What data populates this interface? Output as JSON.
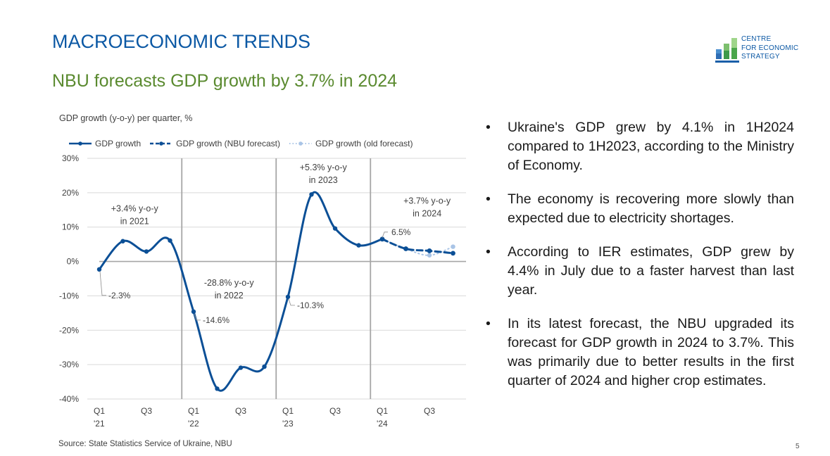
{
  "header": {
    "title": "MACROECONOMIC TRENDS",
    "subtitle": "NBU forecasts GDP growth by 3.7% in 2024"
  },
  "logo": {
    "icon": "bar-chart-logo-icon",
    "lines": [
      "CENTRE",
      "FOR ECONOMIC",
      "STRATEGY"
    ]
  },
  "bullets": [
    "Ukraine's GDP grew by 4.1% in 1H2024 compared to 1H2023, according to the Ministry of Economy.",
    "The economy is recovering more slowly than expected due to electricity shortages.",
    "According to IER estimates, GDP grew by 4.4% in July due to a faster harvest than last year.",
    "In its latest forecast, the NBU upgraded its forecast for GDP growth in 2024 to 3.7%. This was primarily due to better results in the first quarter of 2024 and higher crop estimates."
  ],
  "bullet_glyph": "•",
  "footer": {
    "source": "Source: State Statistics Service of Ukraine, NBU",
    "page_number": "5"
  },
  "colors": {
    "title": "#0b58a4",
    "subtitle": "#5a8a2f",
    "series_main": "#0b4f96",
    "series_old": "#a9c4e6",
    "grid": "#d9d9d9",
    "year_divider": "#a6a6a6"
  },
  "chart_data": {
    "type": "line",
    "title": "GDP growth (y-o-y) per quarter, %",
    "xlabel": "",
    "ylabel": "",
    "ylim": [
      -40,
      30
    ],
    "yticks": [
      30,
      20,
      10,
      0,
      -10,
      -20,
      -30,
      -40
    ],
    "ytick_labels": [
      "30%",
      "20%",
      "10%",
      "0%",
      "-10%",
      "-20%",
      "-30%",
      "-40%"
    ],
    "x": [
      "Q1'21",
      "Q2'21",
      "Q3'21",
      "Q4'21",
      "Q1'22",
      "Q2'22",
      "Q3'22",
      "Q4'22",
      "Q1'23",
      "Q2'23",
      "Q3'23",
      "Q4'23",
      "Q1'24",
      "Q2'24",
      "Q3'24",
      "Q4'24"
    ],
    "xtick_labels": [
      {
        "index": 0,
        "line1": "Q1",
        "line2": "'21"
      },
      {
        "index": 2,
        "line1": "Q3",
        "line2": ""
      },
      {
        "index": 4,
        "line1": "Q1",
        "line2": "'22"
      },
      {
        "index": 6,
        "line1": "Q3",
        "line2": ""
      },
      {
        "index": 8,
        "line1": "Q1",
        "line2": "'23"
      },
      {
        "index": 10,
        "line1": "Q3",
        "line2": ""
      },
      {
        "index": 12,
        "line1": "Q1",
        "line2": "'24"
      },
      {
        "index": 14,
        "line1": "Q3",
        "line2": ""
      }
    ],
    "year_dividers_after_index": [
      3,
      7,
      11
    ],
    "grid": true,
    "legend_position": "top-left",
    "series": [
      {
        "name": "GDP growth",
        "style": "solid",
        "start_index": 0,
        "values": [
          -2.3,
          5.9,
          2.9,
          6.1,
          -14.6,
          -37.0,
          -30.9,
          -30.6,
          -10.3,
          19.5,
          9.6,
          4.7,
          6.5
        ]
      },
      {
        "name": "GDP growth (NBU forecast)",
        "style": "dashed",
        "start_index": 12,
        "values": [
          6.5,
          3.7,
          3.1,
          2.4
        ]
      },
      {
        "name": "GDP growth (old forecast)",
        "style": "dotted",
        "start_index": 13,
        "values": [
          3.7,
          1.8,
          4.3
        ]
      }
    ],
    "data_labels": [
      {
        "index": 0,
        "text": "-2.3%"
      },
      {
        "index": 4,
        "text": "-14.6%"
      },
      {
        "index": 8,
        "text": "-10.3%"
      },
      {
        "index": 12,
        "text": "6.5%"
      }
    ],
    "annotations": [
      {
        "text": [
          "+3.4% y-o-y",
          "in 2021"
        ],
        "anchor_index": 1.5,
        "anchor_value": 14.5
      },
      {
        "text": [
          "-28.8% y-o-y",
          "in 2022"
        ],
        "anchor_index": 5.5,
        "anchor_value": -7.0
      },
      {
        "text": [
          "+5.3% y-o-y",
          "in 2023"
        ],
        "anchor_index": 9.5,
        "anchor_value": 26.5
      },
      {
        "text": [
          "+3.7% y-o-y",
          "in 2024"
        ],
        "anchor_index": 13.9,
        "anchor_value": 16.8
      }
    ]
  }
}
